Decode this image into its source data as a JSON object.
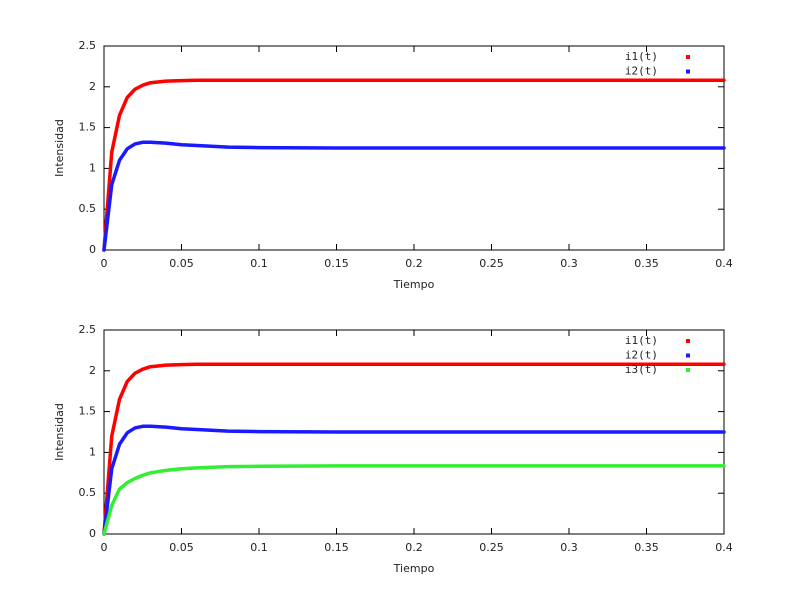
{
  "chart_data": [
    {
      "type": "line",
      "xlabel": "Tiempo",
      "ylabel": "Intensidad",
      "x": [
        0,
        0.005,
        0.01,
        0.015,
        0.02,
        0.025,
        0.03,
        0.04,
        0.05,
        0.06,
        0.08,
        0.1,
        0.15,
        0.2,
        0.25,
        0.3,
        0.35,
        0.4
      ],
      "series": [
        {
          "name": "i1(t)",
          "color": "#ff0000",
          "values": [
            0,
            1.2,
            1.65,
            1.87,
            1.97,
            2.02,
            2.05,
            2.07,
            2.075,
            2.08,
            2.08,
            2.08,
            2.08,
            2.08,
            2.08,
            2.08,
            2.08,
            2.08
          ]
        },
        {
          "name": "i2(t)",
          "color": "#1a1aff",
          "values": [
            0,
            0.8,
            1.1,
            1.24,
            1.3,
            1.32,
            1.32,
            1.31,
            1.29,
            1.28,
            1.26,
            1.255,
            1.25,
            1.25,
            1.25,
            1.25,
            1.25,
            1.25
          ]
        }
      ],
      "xlim": [
        0,
        0.4
      ],
      "ylim": [
        0,
        2.5
      ],
      "xticks": [
        0,
        0.05,
        0.1,
        0.15,
        0.2,
        0.25,
        0.3,
        0.35,
        0.4
      ],
      "yticks": [
        0,
        0.5,
        1,
        1.5,
        2,
        2.5
      ],
      "legend": "top right"
    },
    {
      "type": "line",
      "xlabel": "Tiempo",
      "ylabel": "Intensidad",
      "x": [
        0,
        0.005,
        0.01,
        0.015,
        0.02,
        0.025,
        0.03,
        0.04,
        0.05,
        0.06,
        0.08,
        0.1,
        0.15,
        0.2,
        0.25,
        0.3,
        0.35,
        0.4
      ],
      "series": [
        {
          "name": "i1(t)",
          "color": "#ff0000",
          "values": [
            0,
            1.2,
            1.65,
            1.87,
            1.97,
            2.02,
            2.05,
            2.07,
            2.075,
            2.08,
            2.08,
            2.08,
            2.08,
            2.08,
            2.08,
            2.08,
            2.08,
            2.08
          ]
        },
        {
          "name": "i2(t)",
          "color": "#1a1aff",
          "values": [
            0,
            0.8,
            1.1,
            1.24,
            1.3,
            1.32,
            1.32,
            1.31,
            1.29,
            1.28,
            1.26,
            1.255,
            1.25,
            1.25,
            1.25,
            1.25,
            1.25,
            1.25
          ]
        },
        {
          "name": "i3(t)",
          "color": "#33ee33",
          "values": [
            0,
            0.35,
            0.55,
            0.63,
            0.68,
            0.72,
            0.75,
            0.78,
            0.8,
            0.81,
            0.825,
            0.83,
            0.835,
            0.835,
            0.835,
            0.835,
            0.835,
            0.835
          ]
        }
      ],
      "xlim": [
        0,
        0.4
      ],
      "ylim": [
        0,
        2.5
      ],
      "xticks": [
        0,
        0.05,
        0.1,
        0.15,
        0.2,
        0.25,
        0.3,
        0.35,
        0.4
      ],
      "yticks": [
        0,
        0.5,
        1,
        1.5,
        2,
        2.5
      ],
      "legend": "top right"
    }
  ]
}
